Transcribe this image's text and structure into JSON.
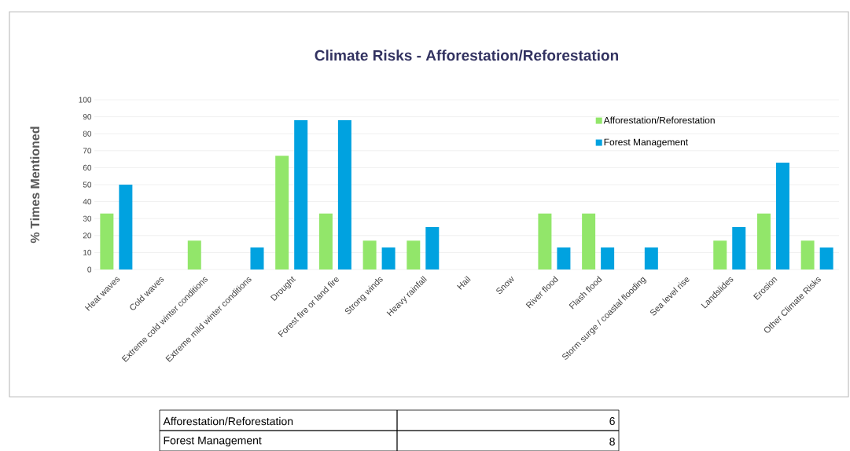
{
  "chart_data": {
    "type": "bar",
    "title": "Climate Risks - Afforestation/Reforestation",
    "ylabel": "% Times Mentioned",
    "categories": [
      "Heat waves",
      "Cold waves",
      "Extreme cold winter conditions",
      "Extreme mild winter conditions",
      "Drought",
      "Forest fire or land fire",
      "Strong winds",
      "Heavy rainfall",
      "Hail",
      "Snow",
      "River flood",
      "Flash flood",
      "Storm surge / coastal flooding",
      "Sea level rise",
      "Landslides",
      "Erosion",
      "Other Climate Risks"
    ],
    "series": [
      {
        "name": "Afforestation/Reforestation",
        "color": "#92e66a",
        "values": [
          33,
          0,
          17,
          0,
          67,
          33,
          17,
          17,
          0,
          0,
          33,
          33,
          0,
          0,
          17,
          33,
          17
        ]
      },
      {
        "name": "Forest Management",
        "color": "#00a2e0",
        "values": [
          50,
          0,
          0,
          13,
          88,
          88,
          13,
          25,
          0,
          0,
          13,
          13,
          13,
          0,
          25,
          63,
          13
        ]
      }
    ],
    "ylim": [
      0,
      100
    ],
    "yticks": [
      0,
      10,
      20,
      30,
      40,
      50,
      60,
      70,
      80,
      90,
      100
    ],
    "grid": "y",
    "legend": "top right",
    "annotations": [
      "Afforestation/Reforestation",
      "6",
      "Forest Management",
      "8"
    ]
  }
}
